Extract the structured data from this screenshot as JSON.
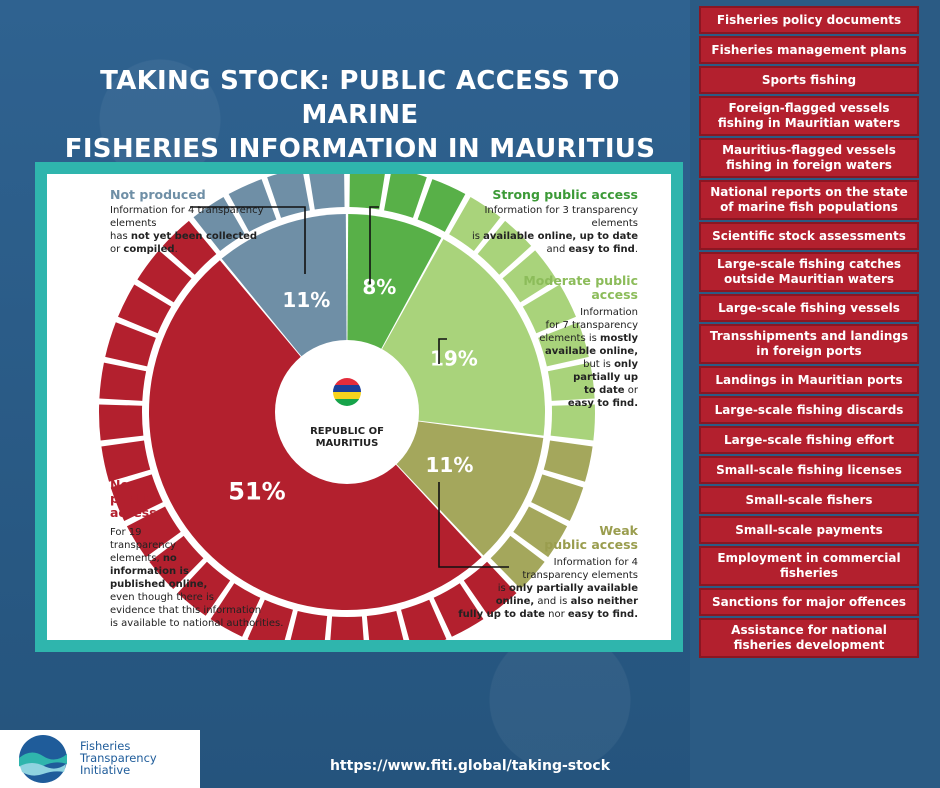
{
  "title_line1": "TAKING STOCK: PUBLIC ACCESS TO MARINE",
  "title_line2": "FISHERIES INFORMATION IN MAURITIUS",
  "center": {
    "line1": "REPUBLIC OF",
    "line2": "MAURITIUS"
  },
  "chart_data": {
    "type": "pie",
    "categories": [
      "Strong public access",
      "Moderate public access",
      "Weak public access",
      "No public access",
      "Not produced"
    ],
    "values": [
      8,
      19,
      11,
      51,
      11
    ],
    "element_counts": [
      3,
      7,
      4,
      19,
      4
    ],
    "value_labels": [
      "8%",
      "19%",
      "11%",
      "51%",
      "11%"
    ],
    "colors": [
      "#58b048",
      "#a9d37b",
      "#a4a75c",
      "#b3202e",
      "#6f8fa6"
    ],
    "outer_colors": [
      "#58b048",
      "#a9d37b",
      "#a4a75c",
      "#b3202e",
      "#6f8fa6"
    ]
  },
  "legend": {
    "not_produced": {
      "title": "Not produced",
      "line1": "Information for 4 transparency elements",
      "line2_a": "has ",
      "line2_b": "not yet been collected",
      "line3_a": "or ",
      "line3_b": "compiled",
      "line3_c": "."
    },
    "strong": {
      "title": "Strong public access",
      "line1": "Information for 3 transparency elements",
      "line2_a": "is ",
      "line2_b": "available online, up to date",
      "line3_a": "and ",
      "line3_b": "easy to find",
      "line3_c": "."
    },
    "moderate": {
      "title1": "Moderate public",
      "title2": "access",
      "l1": "Information",
      "l2": "for 7 transparency",
      "l3_a": "elements is ",
      "l3_b": "mostly",
      "l4": "available online,",
      "l5_a": "but is ",
      "l5_b": "only",
      "l6": "partially up",
      "l7_a": "to date",
      "l7_b": " or",
      "l8": "easy to find."
    },
    "weak": {
      "title1": "Weak",
      "title2": "public access",
      "l1": "Information for 4",
      "l2": "transparency elements",
      "l3_a": "is ",
      "l3_b": "only partially available",
      "l4_a": "online,",
      "l4_b": " and is ",
      "l4_c": "also neither",
      "l5_a": "fully up to date",
      "l5_b": " nor ",
      "l5_c": "easy to find."
    },
    "no_access": {
      "title1": "No",
      "title2": "public",
      "title3": "access",
      "l1": "For 19",
      "l2": "transparency",
      "l3_a": "elements, ",
      "l3_b": "no",
      "l4": "information is",
      "l5": "published online,",
      "l6": "even though there is",
      "l7": "evidence that this information",
      "l8": "is available to national authorities."
    }
  },
  "sidebar_items": [
    "Fisheries policy documents",
    "Fisheries management plans",
    "Sports fishing",
    "Foreign-flagged vessels fishing in Mauritian waters",
    "Mauritius-flagged vessels fishing in foreign waters",
    "National reports on the state of marine fish populations",
    "Scientific stock assessments",
    "Large-scale fishing catches outside Mauritian waters",
    "Large-scale fishing vessels",
    "Transshipments and landings in foreign ports",
    "Landings in Mauritian ports",
    "Large-scale fishing discards",
    "Large-scale fishing effort",
    "Small-scale fishing licenses",
    "Small-scale fishers",
    "Small-scale payments",
    "Employment in commercial fisheries",
    "Sanctions for major offences",
    "Assistance for national fisheries development"
  ],
  "logo": {
    "line1": "Fisheries",
    "line2": "Transparency",
    "line3": "Initiative"
  },
  "url": "https://www.fiti.global/taking-stock"
}
